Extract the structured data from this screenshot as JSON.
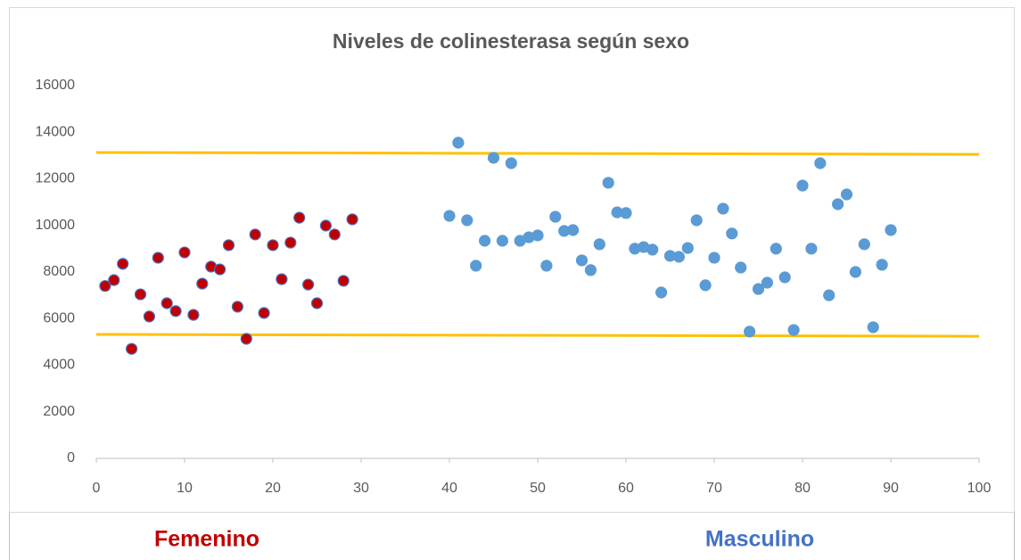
{
  "chart_data": {
    "type": "scatter",
    "title": "Niveles de colinesterasa según sexo",
    "xlim": [
      0,
      100
    ],
    "xticks": [
      0,
      10,
      20,
      30,
      40,
      50,
      60,
      70,
      80,
      90,
      100
    ],
    "ylim": [
      0,
      16000
    ],
    "yticks": [
      0,
      2000,
      4000,
      6000,
      8000,
      10000,
      12000,
      14000,
      16000
    ],
    "grid": false,
    "series": [
      {
        "name": "Femenino",
        "color": "#c00000",
        "edgecolor": "#4472c4",
        "x": [
          1,
          2,
          3,
          4,
          5,
          6,
          7,
          8,
          9,
          10,
          11,
          12,
          13,
          14,
          15,
          16,
          17,
          18,
          19,
          20,
          21,
          22,
          23,
          24,
          25,
          26,
          27,
          28,
          29
        ],
        "values": [
          7400,
          7650,
          8350,
          4700,
          7040,
          6090,
          8610,
          6660,
          6320,
          8840,
          6160,
          7500,
          8230,
          8110,
          9150,
          6510,
          5130,
          9610,
          6240,
          9150,
          7690,
          9260,
          10330,
          7460,
          6660,
          9990,
          9610,
          7620,
          10260
        ]
      },
      {
        "name": "Masculino",
        "color": "#5b9bd5",
        "label_color": "#4472c4",
        "x": [
          40,
          41,
          42,
          43,
          44,
          45,
          46,
          47,
          48,
          49,
          50,
          51,
          52,
          53,
          54,
          55,
          56,
          57,
          58,
          59,
          60,
          61,
          62,
          63,
          64,
          65,
          66,
          67,
          68,
          69,
          70,
          71,
          72,
          73,
          74,
          75,
          76,
          77,
          78,
          79,
          80,
          81,
          82,
          83,
          84,
          85,
          86,
          87,
          88,
          89,
          90
        ],
        "values": [
          10410,
          13550,
          10220,
          8270,
          9340,
          12900,
          9340,
          12670,
          9340,
          9490,
          9570,
          8270,
          10370,
          9760,
          9800,
          8500,
          8080,
          9190,
          11830,
          10560,
          10530,
          9000,
          9070,
          8960,
          7120,
          8690,
          8650,
          9030,
          10220,
          7430,
          8610,
          10720,
          9650,
          8190,
          5440,
          7270,
          7540,
          9000,
          7770,
          5510,
          11710,
          9000,
          12670,
          7000,
          10910,
          11330,
          8000,
          9190,
          5630,
          8310,
          9800
        ]
      }
    ],
    "reference_lines": [
      {
        "color": "#ffc000",
        "x": [
          0,
          100
        ],
        "values": [
          13130,
          13050
        ]
      },
      {
        "color": "#ffc000",
        "x": [
          0,
          100
        ],
        "values": [
          5320,
          5240
        ]
      }
    ]
  }
}
